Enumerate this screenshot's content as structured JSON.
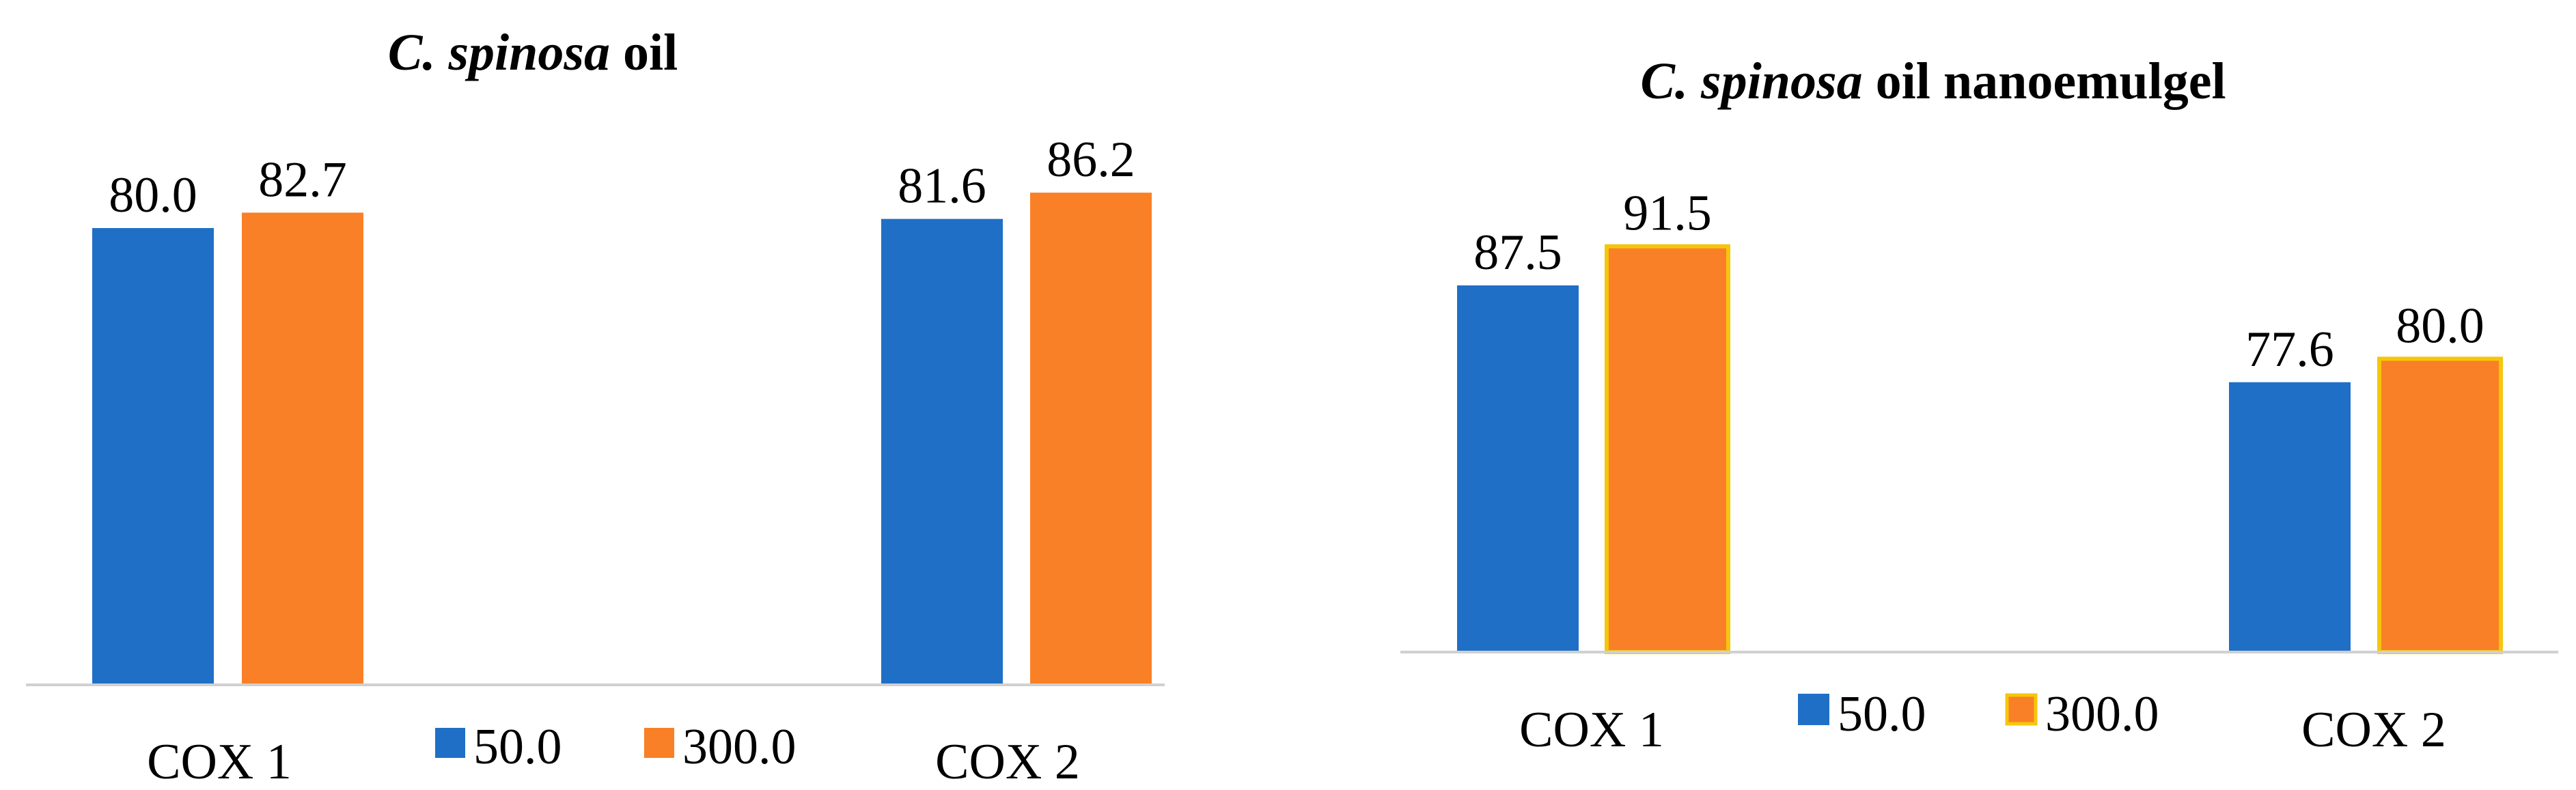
{
  "chart_data": [
    {
      "type": "bar",
      "title_italic": "C. spinosa",
      "title_rest": " oil",
      "categories": [
        "COX 1",
        "COX 2"
      ],
      "series": [
        {
          "name": "50.0",
          "values": [
            80.0,
            81.6
          ],
          "labels": [
            "80.0",
            "81.6"
          ],
          "color": "#1f6fc7",
          "border": "#1f6fc7"
        },
        {
          "name": "300.0",
          "values": [
            82.7,
            86.2
          ],
          "labels": [
            "82.7",
            "86.2"
          ],
          "color": "#f98026",
          "border": "#f98026"
        }
      ],
      "ylim": [
        0,
        90
      ],
      "xlabel": "",
      "ylabel": "",
      "grid": false,
      "legend": "bottom-center"
    },
    {
      "type": "bar",
      "title_italic": "C. spinosa",
      "title_rest": " oil nanoemulgel",
      "categories": [
        "COX 1",
        "COX 2"
      ],
      "series": [
        {
          "name": "50.0",
          "values": [
            87.5,
            77.6
          ],
          "labels": [
            "87.5",
            "77.6"
          ],
          "color": "#1f6fc7",
          "border": "#1f6fc7"
        },
        {
          "name": "300.0",
          "values": [
            91.5,
            80.0
          ],
          "labels": [
            "91.5",
            "80.0"
          ],
          "color": "#f98026",
          "border": "#f5c60c"
        }
      ],
      "ylim": [
        50,
        95
      ],
      "xlabel": "",
      "ylabel": "",
      "grid": false,
      "legend": "bottom-center"
    }
  ]
}
